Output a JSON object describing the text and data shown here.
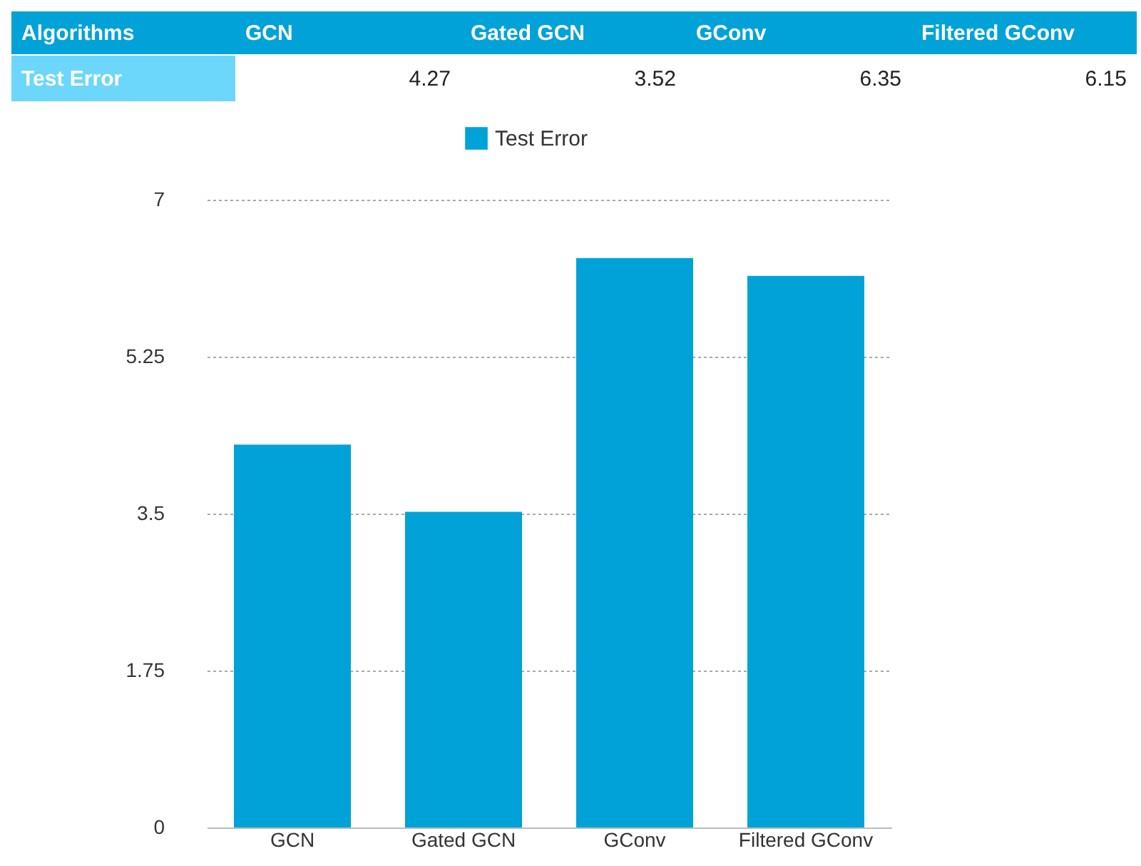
{
  "chart_data": [
    {
      "type": "other",
      "annotations": [
        "Algorithms",
        "GCN",
        "Gated GCN",
        "GConv",
        "Filtered GConv",
        "Test Error",
        "4.27",
        "3.52",
        "6.35",
        "6.15"
      ]
    },
    {
      "type": "bar",
      "categories": [
        "GCN",
        "Gated GCN",
        "GConv",
        "Filtered GConv"
      ],
      "series": [
        {
          "name": "Test Error",
          "color": "#00a2d8",
          "values": [
            4.27,
            3.52,
            6.35,
            6.15
          ]
        }
      ],
      "ylim": [
        0,
        7
      ],
      "yticks": [
        0,
        1.75,
        3.5,
        5.25,
        7
      ],
      "grid": "y",
      "legend": "top"
    }
  ]
}
